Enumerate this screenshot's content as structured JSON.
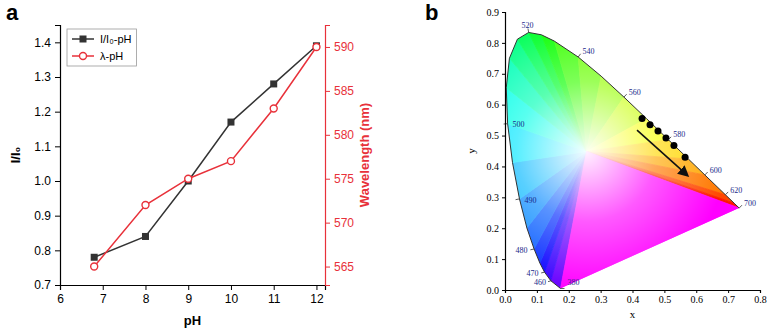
{
  "chart_data": [
    {
      "panel": "a",
      "type": "line",
      "xlabel": "pH",
      "ylabel": "I/I₀",
      "y2label": "Wavelength (nm)",
      "x": [
        6.8,
        8,
        9,
        10,
        11,
        12
      ],
      "xlim": [
        6,
        12.2
      ],
      "xticks": [
        6,
        7,
        8,
        9,
        10,
        11,
        12
      ],
      "ylim": [
        0.7,
        1.45
      ],
      "yticks": [
        0.7,
        0.8,
        0.9,
        {
          "value": 1,
          "label": "1.0"
        },
        1.1,
        1.2,
        1.3,
        1.4
      ],
      "y2lim": [
        562.9,
        592.5
      ],
      "y2ticks": [
        565,
        570,
        575,
        580,
        585,
        590
      ],
      "legend": "upper left",
      "series": [
        {
          "name": "I/I₀-pH",
          "color": "#333333",
          "marker": "square",
          "values": [
            0.78,
            0.84,
            1.0,
            1.17,
            1.28,
            1.39
          ]
        },
        {
          "name": "λ-pH",
          "color": "#e8313a",
          "marker": "circle",
          "axis": "y2",
          "values": [
            565,
            572,
            575,
            577,
            583,
            590
          ]
        }
      ]
    },
    {
      "panel": "b",
      "type": "scatter",
      "xlabel": "x",
      "ylabel": "y",
      "x": [
        0.43,
        0.455,
        0.48,
        0.505,
        0.53,
        0.565
      ],
      "values": [
        0.555,
        0.535,
        0.515,
        0.492,
        0.468,
        0.43
      ],
      "color": "#000000",
      "marker": "circle",
      "xlim": [
        0,
        0.8
      ],
      "xticks": [
        {
          "value": 0,
          "label": "0.0"
        },
        0.1,
        0.2,
        0.3,
        0.4,
        0.5,
        0.6,
        0.7,
        0.8
      ],
      "ylim": [
        0,
        0.9
      ],
      "yticks": [
        {
          "value": 0,
          "label": "0.0"
        },
        0.1,
        0.2,
        0.3,
        0.4,
        0.5,
        0.6,
        0.7,
        0.8,
        0.9
      ],
      "locus": {
        "x": [
          0.1741,
          0.144,
          0.1241,
          0.1096,
          0.0913,
          0.0687,
          0.0454,
          0.0235,
          0.0082,
          0.0039,
          0.0139,
          0.0389,
          0.0743,
          0.1142,
          0.1547,
          0.2296,
          0.3016,
          0.3731,
          0.4441,
          0.5125,
          0.5752,
          0.627,
          0.6915,
          0.719,
          0.7347
        ],
        "y": [
          0.005,
          0.0297,
          0.0578,
          0.0868,
          0.1327,
          0.2007,
          0.295,
          0.4127,
          0.5384,
          0.6548,
          0.7502,
          0.812,
          0.8338,
          0.8262,
          0.8059,
          0.7543,
          0.6923,
          0.6245,
          0.5547,
          0.4866,
          0.4242,
          0.3725,
          0.3083,
          0.2809,
          0.2653
        ],
        "wavelengths": [
          380,
          460,
          470,
          null,
          480,
          null,
          490,
          null,
          500,
          null,
          null,
          null,
          520,
          null,
          null,
          540,
          null,
          560,
          null,
          580,
          null,
          600,
          620,
          null,
          700
        ]
      }
    }
  ]
}
